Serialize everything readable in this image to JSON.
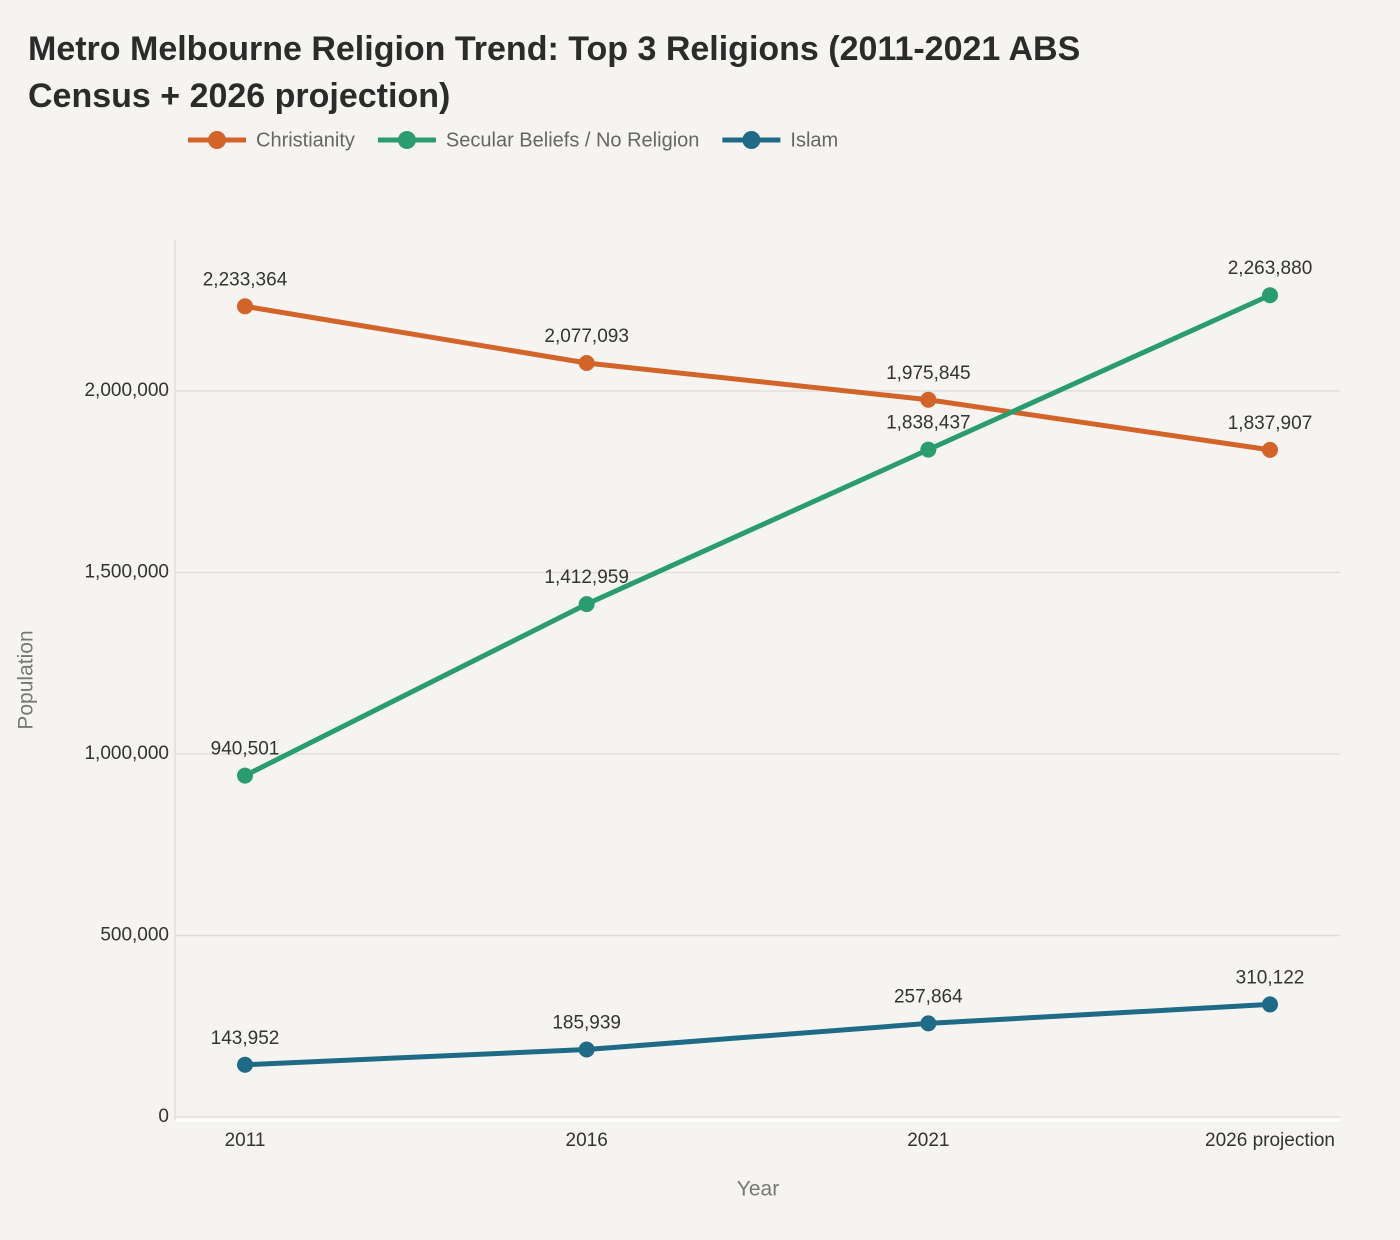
{
  "chart_data": {
    "type": "line",
    "title": "Metro Melbourne Religion Trend: Top 3 Religions (2011-2021 ABS Census + 2026 projection)",
    "x_label": "Year",
    "y_label": "Population",
    "categories": [
      "2011",
      "2016",
      "2021",
      "2026 projection"
    ],
    "series": [
      {
        "name": "Christianity",
        "color": "#d2642a",
        "values": [
          2233364,
          2077093,
          1975845,
          1837907
        ],
        "value_labels": [
          "2,233,364",
          "2,077,093",
          "1,975,845",
          "1,837,907"
        ]
      },
      {
        "name": "Secular Beliefs / No Religion",
        "color": "#2a9d6f",
        "values": [
          940501,
          1412959,
          1838437,
          2263880
        ],
        "value_labels": [
          "940,501",
          "1,412,959",
          "1,838,437",
          "2,263,880"
        ]
      },
      {
        "name": "Islam",
        "color": "#1f6a87",
        "values": [
          143952,
          185939,
          257864,
          310122
        ],
        "value_labels": [
          "143,952",
          "185,939",
          "257,864",
          "310,122"
        ]
      }
    ],
    "ylim": [
      0,
      2416000
    ],
    "yticks": [
      0,
      {
        "value": 500000,
        "label": "500,000"
      },
      {
        "value": 1000000,
        "label": "1,000,000"
      },
      {
        "value": 1500000,
        "label": "1,500,000"
      },
      {
        "value": 2000000,
        "label": "2,000,000"
      }
    ],
    "grid": true
  }
}
